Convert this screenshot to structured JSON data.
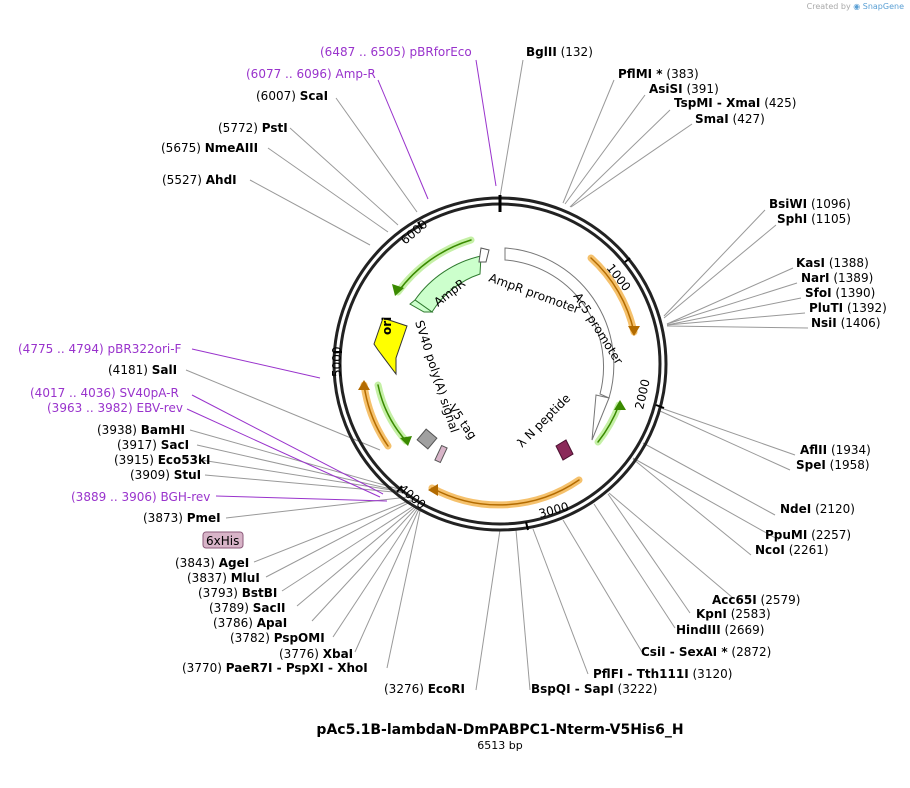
{
  "credit": {
    "prefix": "Created by",
    "brand": "SnapGene"
  },
  "plasmid": {
    "name": "pAc5.1B-lambdaN-DmPABPC1-Nterm-V5His6_H",
    "size": "6513 bp"
  },
  "ticks": [
    "1000",
    "2000",
    "3000",
    "4000",
    "5000",
    "6000"
  ],
  "features": {
    "ampr": "AmpR",
    "ampr_promoter": "AmpR promoter",
    "ori": "ori",
    "ac5_promoter": "Ac5 promoter",
    "sv40": "SV40 poly(A) signal",
    "v5": "V5 tag",
    "lambdan": "λ N peptide",
    "his": "6xHis"
  },
  "sites": [
    {
      "name": "BglII",
      "pos": "(132)"
    },
    {
      "name": "PflMI *",
      "pos": "(383)"
    },
    {
      "name": "AsiSI",
      "pos": "(391)"
    },
    {
      "name": "TspMI - XmaI",
      "pos": "(425)"
    },
    {
      "name": "SmaI",
      "pos": "(427)"
    },
    {
      "name": "BsiWI",
      "pos": "(1096)"
    },
    {
      "name": "SphI",
      "pos": "(1105)"
    },
    {
      "name": "KasI",
      "pos": "(1388)"
    },
    {
      "name": "NarI",
      "pos": "(1389)"
    },
    {
      "name": "SfoI",
      "pos": "(1390)"
    },
    {
      "name": "PluTI",
      "pos": "(1392)"
    },
    {
      "name": "NsiI",
      "pos": "(1406)"
    },
    {
      "name": "AflII",
      "pos": "(1934)"
    },
    {
      "name": "SpeI",
      "pos": "(1958)"
    },
    {
      "name": "NdeI",
      "pos": "(2120)"
    },
    {
      "name": "PpuMI",
      "pos": "(2257)"
    },
    {
      "name": "NcoI",
      "pos": "(2261)"
    },
    {
      "name": "Acc65I",
      "pos": "(2579)"
    },
    {
      "name": "KpnI",
      "pos": "(2583)"
    },
    {
      "name": "HindIII",
      "pos": "(2669)"
    },
    {
      "name": "CsiI - SexAI *",
      "pos": "(2872)"
    },
    {
      "name": "PflFI - Tth111I",
      "pos": "(3120)"
    },
    {
      "name": "BspQI - SapI",
      "pos": "(3222)"
    },
    {
      "name": "EcoRI",
      "pos": "(3276)"
    },
    {
      "name": "PaeR7I - PspXI - XhoI",
      "pos": "(3770)"
    },
    {
      "name": "XbaI",
      "pos": "(3776)"
    },
    {
      "name": "PspOMI",
      "pos": "(3782)"
    },
    {
      "name": "ApaI",
      "pos": "(3786)"
    },
    {
      "name": "SacII",
      "pos": "(3789)"
    },
    {
      "name": "BstBI",
      "pos": "(3793)"
    },
    {
      "name": "MluI",
      "pos": "(3837)"
    },
    {
      "name": "AgeI",
      "pos": "(3843)"
    },
    {
      "name": "PmeI",
      "pos": "(3873)"
    },
    {
      "name": "StuI",
      "pos": "(3909)"
    },
    {
      "name": "Eco53kI",
      "pos": "(3915)"
    },
    {
      "name": "SacI",
      "pos": "(3917)"
    },
    {
      "name": "BamHI",
      "pos": "(3938)"
    },
    {
      "name": "SalI",
      "pos": "(4181)"
    },
    {
      "name": "AhdI",
      "pos": "(5527)"
    },
    {
      "name": "NmeAIII",
      "pos": "(5675)"
    },
    {
      "name": "PstI",
      "pos": "(5772)"
    },
    {
      "name": "ScaI",
      "pos": "(6007)"
    }
  ],
  "primers": [
    {
      "range": "(6487 .. 6505)",
      "name": "pBRforEco"
    },
    {
      "range": "(6077 .. 6096)",
      "name": "Amp-R"
    },
    {
      "range": "(4775 .. 4794)",
      "name": "pBR322ori-F"
    },
    {
      "range": "(4017 .. 4036)",
      "name": "SV40pA-R"
    },
    {
      "range": "(3963 .. 3982)",
      "name": "EBV-rev"
    },
    {
      "range": "(3889 .. 3906)",
      "name": "BGH-rev"
    }
  ]
}
